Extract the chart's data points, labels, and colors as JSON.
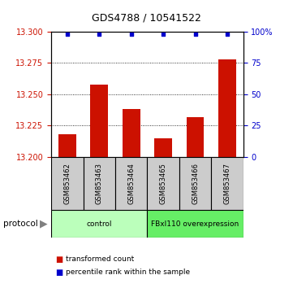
{
  "title": "GDS4788 / 10541522",
  "samples": [
    "GSM853462",
    "GSM853463",
    "GSM853464",
    "GSM853465",
    "GSM853466",
    "GSM853467"
  ],
  "transformed_count": [
    13.218,
    13.258,
    13.238,
    13.215,
    13.232,
    13.278
  ],
  "percentile_rank": [
    98,
    98,
    98,
    98,
    98,
    98
  ],
  "ylim_left": [
    13.2,
    13.3
  ],
  "ylim_right": [
    0,
    100
  ],
  "yticks_left": [
    13.2,
    13.225,
    13.25,
    13.275,
    13.3
  ],
  "yticks_right": [
    0,
    25,
    50,
    75,
    100
  ],
  "ytick_right_labels": [
    "0",
    "25",
    "50",
    "75",
    "100%"
  ],
  "bar_color": "#cc1100",
  "dot_color": "#0000cc",
  "group_labels": [
    "control",
    "FBxl110 overexpression"
  ],
  "group_ranges": [
    [
      0,
      3
    ],
    [
      3,
      6
    ]
  ],
  "group_colors": [
    "#bbffbb",
    "#66ee66"
  ],
  "sample_box_color": "#cccccc",
  "legend_items": [
    {
      "label": "transformed count",
      "color": "#cc1100"
    },
    {
      "label": "percentile rank within the sample",
      "color": "#0000cc"
    }
  ]
}
